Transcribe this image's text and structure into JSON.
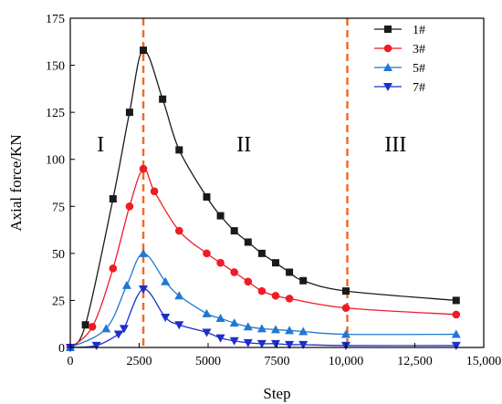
{
  "chart_data": {
    "type": "line",
    "title": "",
    "xlabel": "Step",
    "ylabel": "Axial force/KN",
    "xlim": [
      0,
      15000
    ],
    "ylim": [
      0,
      175
    ],
    "x_ticks": [
      0,
      2500,
      5000,
      7500,
      10000,
      12500,
      15000
    ],
    "x_tick_labels": [
      "0",
      "2500",
      "5000",
      "7500",
      "10,000",
      "12,500",
      "15,000"
    ],
    "y_ticks": [
      0,
      25,
      50,
      75,
      100,
      125,
      150,
      175
    ],
    "y_tick_labels": [
      "0",
      "25",
      "50",
      "75",
      "100",
      "125",
      "150",
      "175"
    ],
    "grid": false,
    "legend_position": "top-right",
    "vertical_lines": [
      {
        "x": 2650,
        "color": "#f26b2a",
        "style": "dashed"
      },
      {
        "x": 10050,
        "color": "#f26b2a",
        "style": "dashed"
      }
    ],
    "region_labels": [
      {
        "text": "I",
        "x": 1100,
        "y": 108
      },
      {
        "text": "II",
        "x": 6300,
        "y": 108
      },
      {
        "text": "III",
        "x": 11800,
        "y": 108
      }
    ],
    "series": [
      {
        "name": "1#",
        "color": "#1a1a1a",
        "marker": "square",
        "x": [
          0,
          550,
          1550,
          2150,
          2650,
          3350,
          3950,
          4950,
          5450,
          5950,
          6450,
          6950,
          7450,
          7950,
          8450,
          10000,
          14000
        ],
        "y": [
          0,
          12,
          79,
          125,
          158,
          132,
          105,
          80,
          70,
          62,
          56,
          50,
          45,
          40,
          35.5,
          30,
          25
        ]
      },
      {
        "name": "3#",
        "color": "#ee1c25",
        "marker": "circle",
        "x": [
          0,
          800,
          1550,
          2150,
          2650,
          3050,
          3950,
          4950,
          5450,
          5950,
          6450,
          6950,
          7450,
          7950,
          10000,
          14000
        ],
        "y": [
          0,
          11,
          42,
          75,
          95,
          83,
          62,
          50,
          45,
          40,
          35,
          30,
          27.5,
          26,
          21,
          17.5
        ]
      },
      {
        "name": "5#",
        "color": "#1f78d1",
        "marker": "triangle-up",
        "x": [
          0,
          1300,
          2050,
          2650,
          3450,
          3950,
          4950,
          5450,
          5950,
          6450,
          6950,
          7450,
          7950,
          8450,
          10000,
          14000
        ],
        "y": [
          0,
          10,
          33,
          50,
          35,
          27.5,
          18,
          15.5,
          13,
          11,
          10,
          9.5,
          9,
          8.5,
          7,
          7
        ]
      },
      {
        "name": "7#",
        "color": "#1d2fc8",
        "marker": "triangle-down",
        "x": [
          0,
          950,
          1750,
          1950,
          2650,
          3450,
          3950,
          4950,
          5450,
          5950,
          6450,
          6950,
          7450,
          7950,
          8450,
          10000,
          14000
        ],
        "y": [
          0,
          1,
          7,
          10,
          31,
          16,
          12,
          8,
          5,
          3.5,
          2.5,
          2,
          2,
          1.5,
          1.5,
          1,
          1
        ]
      }
    ]
  }
}
